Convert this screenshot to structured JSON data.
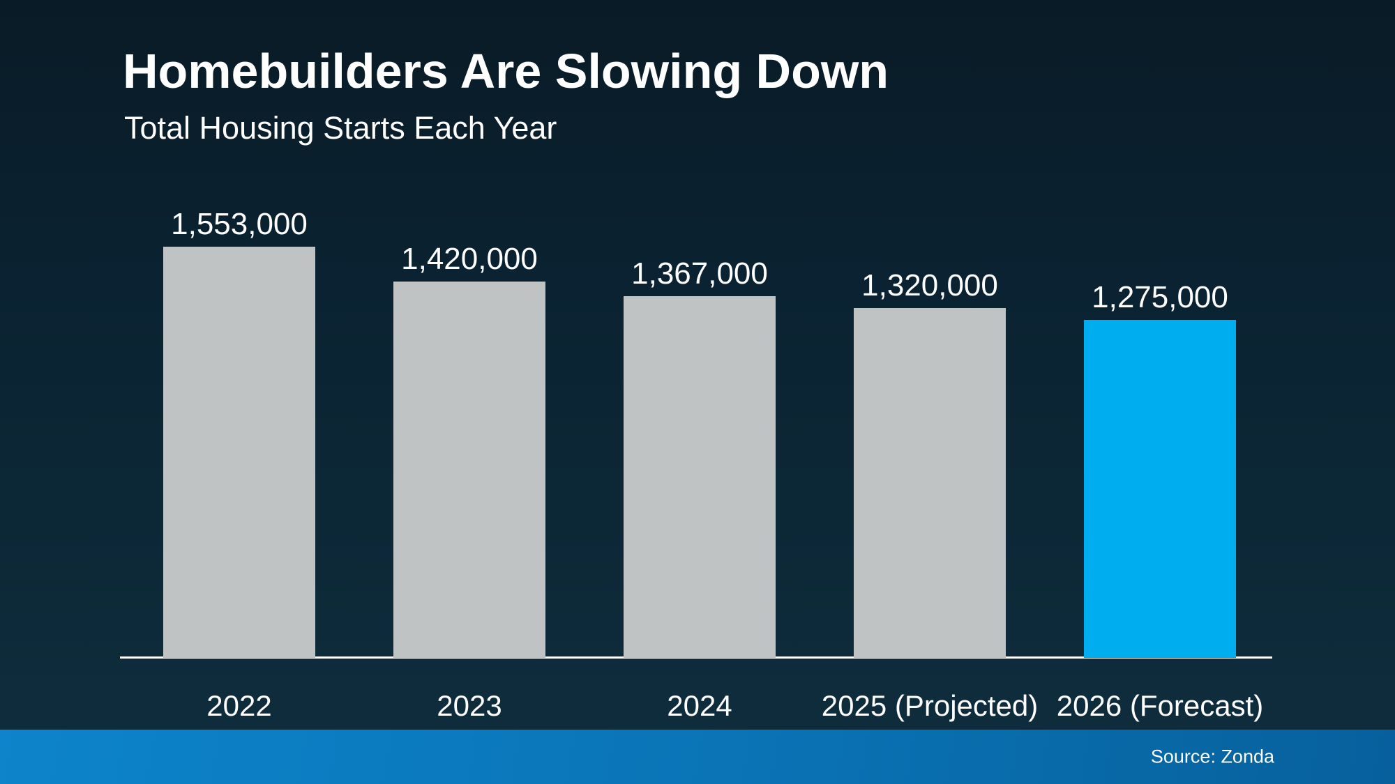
{
  "slide": {
    "title": "Homebuilders Are Slowing Down",
    "subtitle": "Total Housing Starts Each Year",
    "source": "Source: Zonda"
  },
  "colors": {
    "background_top": "#091b26",
    "background_bottom": "#0e2c3c",
    "bar_default": "#bfc3c4",
    "bar_highlight": "#00aeef",
    "footer_left": "#0d84cb",
    "footer_right": "#07609c",
    "axis": "#ffffff",
    "text": "#ffffff"
  },
  "chart_data": {
    "type": "bar",
    "title": "Homebuilders Are Slowing Down",
    "subtitle": "Total Housing Starts Each Year",
    "categories": [
      "2022",
      "2023",
      "2024",
      "2025 (Projected)",
      "2026 (Forecast)"
    ],
    "values": [
      1553000,
      1420000,
      1367000,
      1320000,
      1275000
    ],
    "value_labels": [
      "1,553,000",
      "1,420,000",
      "1,367,000",
      "1,320,000",
      "1,275,000"
    ],
    "highlight_index": 4,
    "xlabel": "",
    "ylabel": "",
    "ylim": [
      0,
      1600000
    ],
    "grid": false,
    "legend": false,
    "baseline": "zero",
    "annotations": []
  }
}
